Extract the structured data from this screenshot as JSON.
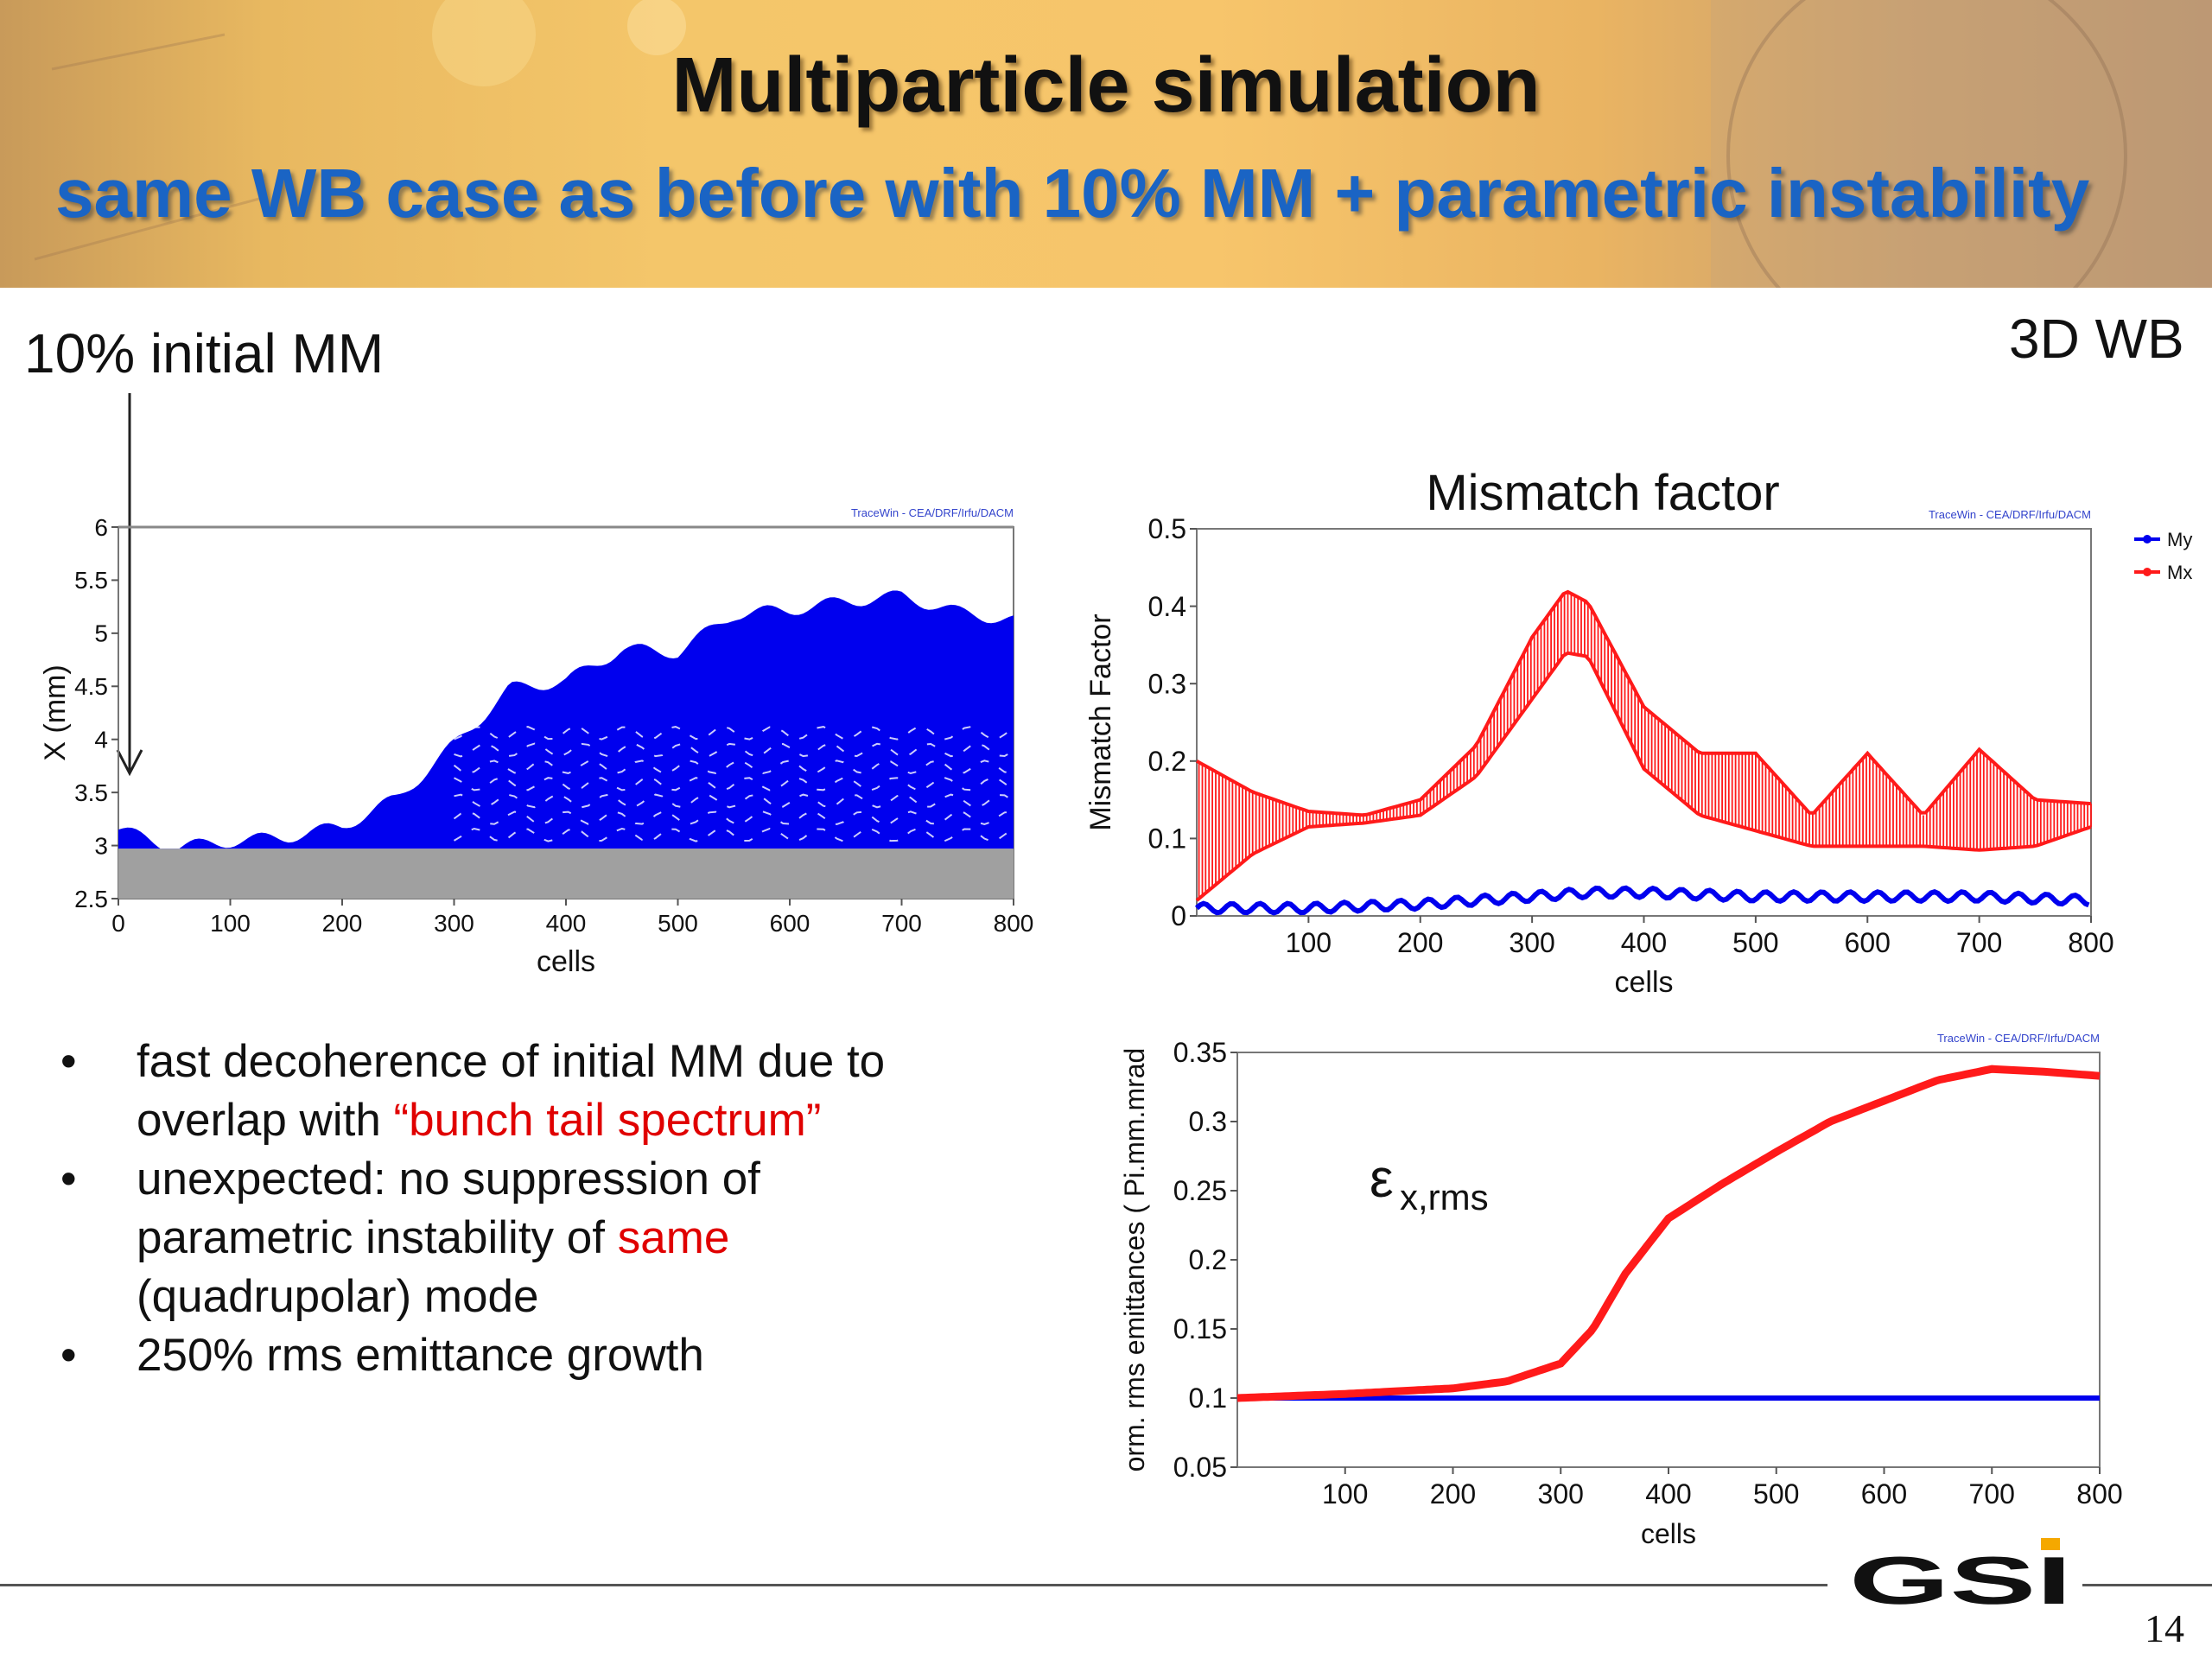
{
  "slide": {
    "title": "Multiparticle simulation",
    "subtitle": "same WB case as before with 10% MM + parametric instability",
    "left_label": "10% initial MM",
    "right_label": "3D WB",
    "page_number": "14",
    "logo_text": "GSI"
  },
  "bullets": [
    {
      "marker": "•",
      "lines": [
        [
          {
            "text": "fast decoherence of initial MM due to",
            "style": "normal"
          }
        ],
        [
          {
            "text": "overlap with ",
            "style": "normal"
          },
          {
            "text": "“bunch tail spectrum”",
            "style": "red"
          }
        ]
      ]
    },
    {
      "marker": "•",
      "lines": [
        [
          {
            "text": "unexpected: no suppression of",
            "style": "normal"
          }
        ],
        [
          {
            "text": "parametric instability of ",
            "style": "normal"
          },
          {
            "text": "same",
            "style": "red"
          }
        ],
        [
          {
            "text": "(quadrupolar) mode",
            "style": "normal"
          }
        ]
      ]
    },
    {
      "marker": "•",
      "lines": [
        [
          {
            "text": "250% rms emittance growth",
            "style": "normal"
          }
        ]
      ]
    }
  ],
  "colors": {
    "accent_red": "#e00000",
    "subtitle_blue": "#1a64c4",
    "series_blue": "#0000ee",
    "series_red": "#ff1a1a",
    "fill_gray": "#a0a0a0"
  },
  "chart_data": [
    {
      "type": "area",
      "title": "",
      "watermark": "TraceWin - CEA/DRF/Irfu/DACM",
      "xlabel": "cells",
      "ylabel": "X (mm)",
      "xlim": [
        0,
        800
      ],
      "ylim": [
        2.5,
        6
      ],
      "xticks": [
        "0",
        "100",
        "200",
        "300",
        "400",
        "500",
        "600",
        "700",
        "800"
      ],
      "yticks": [
        "2.5",
        "3",
        "3.5",
        "4",
        "4.5",
        "5",
        "5.5",
        "6"
      ],
      "series": [
        {
          "color": "#0000ee",
          "x": [
            0,
            50,
            100,
            150,
            200,
            250,
            300,
            350,
            400,
            450,
            500,
            550,
            600,
            650,
            700,
            750,
            800
          ],
          "y": [
            3.15,
            2.98,
            3.04,
            3.08,
            3.18,
            3.45,
            3.95,
            4.48,
            4.55,
            4.85,
            4.82,
            5.18,
            5.22,
            5.3,
            5.35,
            5.2,
            5.12
          ]
        },
        {
          "color": "#a0a0a0",
          "x": [
            0,
            800
          ],
          "y": [
            2.97,
            2.97
          ]
        }
      ]
    },
    {
      "type": "line",
      "title": "Mismatch factor",
      "watermark": "TraceWin - CEA/DRF/Irfu/DACM",
      "xlabel": "cells",
      "ylabel": "Mismatch Factor",
      "xlim": [
        0,
        800
      ],
      "ylim": [
        0,
        0.5
      ],
      "xticks": [
        "100",
        "200",
        "300",
        "400",
        "500",
        "600",
        "700",
        "800"
      ],
      "yticks": [
        "0",
        "0.1",
        "0.2",
        "0.3",
        "0.4",
        "0.5"
      ],
      "legend_position": "right",
      "series": [
        {
          "name": "My",
          "color": "#0000ee",
          "x": [
            0,
            100,
            200,
            300,
            350,
            400,
            500,
            600,
            700,
            800
          ],
          "y": [
            0.01,
            0.01,
            0.015,
            0.025,
            0.03,
            0.03,
            0.025,
            0.025,
            0.025,
            0.02
          ]
        },
        {
          "name": "Mx",
          "color": "#ff1a1a",
          "x": [
            0,
            50,
            100,
            150,
            200,
            250,
            300,
            330,
            350,
            400,
            450,
            500,
            550,
            600,
            650,
            700,
            750,
            800
          ],
          "y": [
            0.11,
            0.12,
            0.125,
            0.125,
            0.14,
            0.2,
            0.32,
            0.38,
            0.37,
            0.23,
            0.17,
            0.16,
            0.11,
            0.15,
            0.11,
            0.15,
            0.12,
            0.13
          ],
          "band": [
            0.09,
            0.04,
            0.01,
            0.005,
            0.01,
            0.02,
            0.04,
            0.04,
            0.035,
            0.04,
            0.04,
            0.05,
            0.02,
            0.06,
            0.02,
            0.065,
            0.03,
            0.015
          ]
        }
      ]
    },
    {
      "type": "line",
      "title": "",
      "annotation_main": "ε",
      "annotation_sub": "x,rms",
      "watermark": "TraceWin - CEA/DRF/Irfu/DACM",
      "xlabel": "cells",
      "ylabel": "orm. rms emittances ( Pi.mm.mrad",
      "xlim": [
        0,
        800
      ],
      "ylim": [
        0.05,
        0.35
      ],
      "xticks": [
        "100",
        "200",
        "300",
        "400",
        "500",
        "600",
        "700",
        "800"
      ],
      "yticks": [
        "0.05",
        "0.1",
        "0.15",
        "0.2",
        "0.25",
        "0.3",
        "0.35"
      ],
      "series": [
        {
          "color": "#ff1a1a",
          "x": [
            0,
            100,
            200,
            250,
            300,
            330,
            360,
            400,
            450,
            500,
            550,
            600,
            650,
            700,
            750,
            800
          ],
          "y": [
            0.1,
            0.103,
            0.107,
            0.112,
            0.125,
            0.15,
            0.19,
            0.23,
            0.255,
            0.278,
            0.3,
            0.315,
            0.33,
            0.338,
            0.336,
            0.333
          ]
        },
        {
          "color": "#0000ee",
          "x": [
            0,
            800
          ],
          "y": [
            0.1,
            0.1
          ]
        }
      ]
    }
  ]
}
